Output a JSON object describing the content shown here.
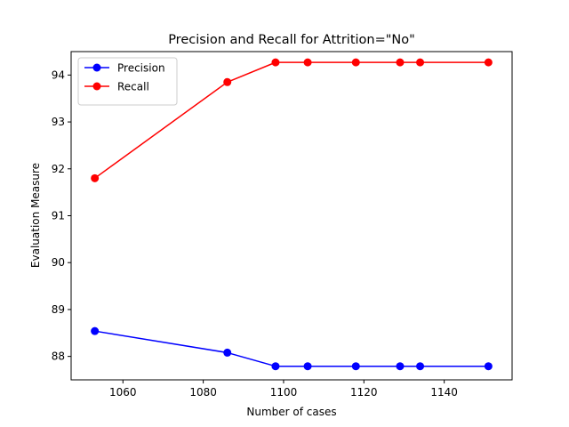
{
  "chart_data": {
    "type": "line",
    "title": "Precision and Recall for Attrition=\"No\"",
    "xlabel": "Number of cases",
    "ylabel": "Evaluation Measure",
    "xlim": [
      1047.1,
      1156.9
    ],
    "ylim": [
      87.5,
      94.5
    ],
    "xticks": [
      1060,
      1080,
      1100,
      1120,
      1140
    ],
    "yticks": [
      88,
      89,
      90,
      91,
      92,
      93,
      94
    ],
    "grid": false,
    "legend": "top-left",
    "x": [
      1053,
      1086,
      1098,
      1106,
      1118,
      1129,
      1134,
      1151
    ],
    "series": [
      {
        "name": "Precision",
        "color": "#0000ff",
        "marker": "circle",
        "values": [
          88.54,
          88.08,
          87.79,
          87.79,
          87.79,
          87.79,
          87.79,
          87.79
        ]
      },
      {
        "name": "Recall",
        "color": "#ff0000",
        "marker": "circle",
        "values": [
          91.8,
          93.85,
          94.27,
          94.27,
          94.27,
          94.27,
          94.27,
          94.27
        ]
      }
    ]
  }
}
